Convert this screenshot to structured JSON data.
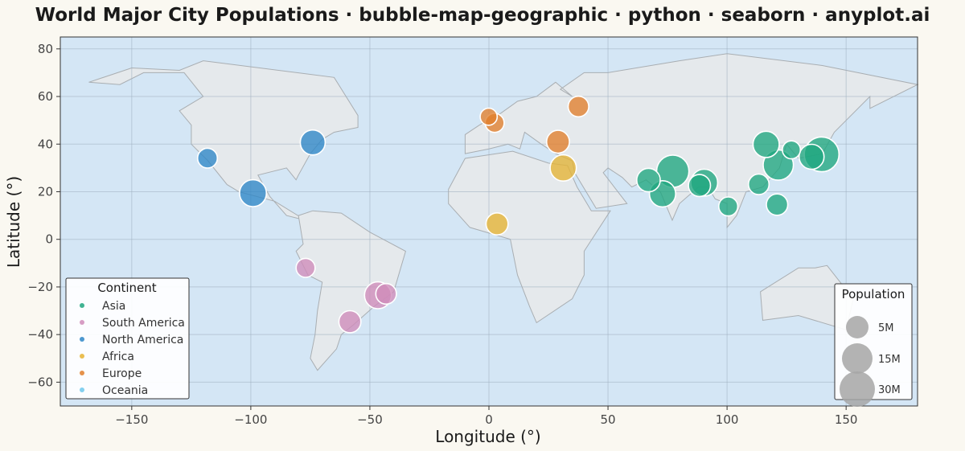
{
  "chart_data": {
    "type": "scatter",
    "title": "World Major City Populations · bubble-map-geographic · python · seaborn · anyplot.ai",
    "xlabel": "Longitude (°)",
    "ylabel": "Latitude (°)",
    "xlim": [
      -180,
      180
    ],
    "ylim": [
      -70,
      85
    ],
    "xticks": [
      -150,
      -100,
      -50,
      0,
      50,
      100,
      150
    ],
    "yticks": [
      -60,
      -40,
      -20,
      0,
      20,
      40,
      60,
      80
    ],
    "grid": true,
    "colors": {
      "ocean": "#D4E6F5",
      "land": "#E5E9EC",
      "land_edge": "#A9AEB2",
      "grid": "#9FAFC0",
      "Asia": "#1FA67F",
      "South America": "#D08CBA",
      "North America": "#2E86C7",
      "Africa": "#E6B333",
      "Europe": "#E17F2C",
      "Oceania": "#6EC8EC",
      "size_legend": "#A6A6A6"
    },
    "legend": {
      "title": "Continent",
      "placement": "lower-left",
      "entries": [
        "Asia",
        "South America",
        "North America",
        "Africa",
        "Europe",
        "Oceania"
      ]
    },
    "size_legend": {
      "title": "Population",
      "placement": "lower-right",
      "entries": [
        {
          "label": "5M",
          "value": 5
        },
        {
          "label": "15M",
          "value": 15
        },
        {
          "label": "30M",
          "value": 30
        }
      ]
    },
    "series": [
      {
        "name": "Asia",
        "points": [
          {
            "lon": 139.7,
            "lat": 35.7,
            "pop": 37
          },
          {
            "lon": 77.2,
            "lat": 28.6,
            "pop": 32
          },
          {
            "lon": 121.5,
            "lat": 31.2,
            "pop": 28
          },
          {
            "lon": 90.4,
            "lat": 23.8,
            "pop": 22
          },
          {
            "lon": 72.9,
            "lat": 19.1,
            "pop": 21
          },
          {
            "lon": 116.4,
            "lat": 39.9,
            "pop": 21
          },
          {
            "lon": 135.5,
            "lat": 34.7,
            "pop": 19
          },
          {
            "lon": 67.0,
            "lat": 24.9,
            "pop": 17
          },
          {
            "lon": 88.4,
            "lat": 22.6,
            "pop": 15
          },
          {
            "lon": 121.0,
            "lat": 14.6,
            "pop": 14
          },
          {
            "lon": 113.3,
            "lat": 23.1,
            "pop": 13
          },
          {
            "lon": 100.5,
            "lat": 13.8,
            "pop": 11
          },
          {
            "lon": 127.0,
            "lat": 37.6,
            "pop": 10
          }
        ]
      },
      {
        "name": "South America",
        "points": [
          {
            "lon": -46.6,
            "lat": -23.5,
            "pop": 22
          },
          {
            "lon": -58.4,
            "lat": -34.6,
            "pop": 15
          },
          {
            "lon": -43.2,
            "lat": -22.9,
            "pop": 13
          },
          {
            "lon": -77.0,
            "lat": -12.0,
            "pop": 11
          }
        ]
      },
      {
        "name": "North America",
        "points": [
          {
            "lon": -99.1,
            "lat": 19.4,
            "pop": 22
          },
          {
            "lon": -74.0,
            "lat": 40.7,
            "pop": 19
          },
          {
            "lon": -118.2,
            "lat": 34.1,
            "pop": 12
          }
        ]
      },
      {
        "name": "Africa",
        "points": [
          {
            "lon": 31.2,
            "lat": 30.0,
            "pop": 21
          },
          {
            "lon": 3.4,
            "lat": 6.5,
            "pop": 15
          }
        ]
      },
      {
        "name": "Europe",
        "points": [
          {
            "lon": 29.0,
            "lat": 41.0,
            "pop": 16
          },
          {
            "lon": 37.6,
            "lat": 55.8,
            "pop": 13
          },
          {
            "lon": 2.4,
            "lat": 48.9,
            "pop": 11
          },
          {
            "lon": -0.1,
            "lat": 51.5,
            "pop": 9
          }
        ]
      },
      {
        "name": "Oceania",
        "points": []
      }
    ],
    "land_polygons": [
      {
        "name": "north-america-landmass",
        "coords": [
          [
            -168,
            66
          ],
          [
            -150,
            72
          ],
          [
            -130,
            71
          ],
          [
            -120,
            75
          ],
          [
            -65,
            68
          ],
          [
            -55,
            52
          ],
          [
            -55,
            47
          ],
          [
            -65,
            45
          ],
          [
            -70,
            42
          ],
          [
            -75,
            36
          ],
          [
            -80,
            27
          ],
          [
            -81,
            25
          ],
          [
            -85,
            30
          ],
          [
            -97,
            27
          ],
          [
            -92,
            18
          ],
          [
            -85,
            10
          ],
          [
            -77,
            8
          ],
          [
            -90,
            16
          ],
          [
            -105,
            20
          ],
          [
            -110,
            23
          ],
          [
            -118,
            33
          ],
          [
            -125,
            40
          ],
          [
            -125,
            48
          ],
          [
            -130,
            54
          ],
          [
            -120,
            60
          ],
          [
            -128,
            70
          ],
          [
            -145,
            70
          ],
          [
            -155,
            65
          ],
          [
            -168,
            66
          ]
        ]
      },
      {
        "name": "south-america-landmass",
        "coords": [
          [
            -80,
            10
          ],
          [
            -74,
            12
          ],
          [
            -62,
            11
          ],
          [
            -50,
            3
          ],
          [
            -35,
            -5
          ],
          [
            -40,
            -22
          ],
          [
            -48,
            -28
          ],
          [
            -57,
            -36
          ],
          [
            -62,
            -40
          ],
          [
            -64,
            -46
          ],
          [
            -72,
            -55
          ],
          [
            -75,
            -50
          ],
          [
            -73,
            -40
          ],
          [
            -72,
            -30
          ],
          [
            -70,
            -18
          ],
          [
            -76,
            -15
          ],
          [
            -81,
            -5
          ],
          [
            -78,
            -2
          ],
          [
            -80,
            10
          ]
        ]
      },
      {
        "name": "europe-asia-landmass",
        "coords": [
          [
            -10,
            36
          ],
          [
            -10,
            44
          ],
          [
            -4,
            48
          ],
          [
            5,
            53
          ],
          [
            12,
            58
          ],
          [
            20,
            60
          ],
          [
            28,
            66
          ],
          [
            35,
            60
          ],
          [
            30,
            63
          ],
          [
            40,
            70
          ],
          [
            50,
            70
          ],
          [
            80,
            75
          ],
          [
            100,
            78
          ],
          [
            140,
            73
          ],
          [
            180,
            65
          ],
          [
            160,
            55
          ],
          [
            160,
            60
          ],
          [
            145,
            45
          ],
          [
            140,
            36
          ],
          [
            130,
            34
          ],
          [
            125,
            40
          ],
          [
            122,
            30
          ],
          [
            115,
            22
          ],
          [
            108,
            20
          ],
          [
            104,
            10
          ],
          [
            100,
            5
          ],
          [
            100,
            15
          ],
          [
            95,
            17
          ],
          [
            92,
            22
          ],
          [
            88,
            22
          ],
          [
            80,
            15
          ],
          [
            77,
            8
          ],
          [
            72,
            20
          ],
          [
            66,
            25
          ],
          [
            60,
            22
          ],
          [
            56,
            26
          ],
          [
            50,
            30
          ],
          [
            48,
            28
          ],
          [
            58,
            15
          ],
          [
            45,
            13
          ],
          [
            36,
            28
          ],
          [
            35,
            33
          ],
          [
            28,
            36
          ],
          [
            22,
            40
          ],
          [
            15,
            45
          ],
          [
            13,
            38
          ],
          [
            8,
            40
          ],
          [
            0,
            38
          ],
          [
            -10,
            36
          ]
        ]
      },
      {
        "name": "africa-landmass",
        "coords": [
          [
            -17,
            21
          ],
          [
            -10,
            34
          ],
          [
            10,
            37
          ],
          [
            25,
            32
          ],
          [
            33,
            31
          ],
          [
            37,
            22
          ],
          [
            43,
            12
          ],
          [
            51,
            12
          ],
          [
            40,
            -5
          ],
          [
            40,
            -15
          ],
          [
            35,
            -25
          ],
          [
            20,
            -35
          ],
          [
            17,
            -28
          ],
          [
            12,
            -15
          ],
          [
            9,
            0
          ],
          [
            -8,
            5
          ],
          [
            -17,
            15
          ],
          [
            -17,
            21
          ]
        ]
      },
      {
        "name": "australia-landmass",
        "coords": [
          [
            114,
            -22
          ],
          [
            115,
            -34
          ],
          [
            130,
            -32
          ],
          [
            150,
            -38
          ],
          [
            153,
            -25
          ],
          [
            142,
            -11
          ],
          [
            137,
            -12
          ],
          [
            130,
            -12
          ],
          [
            114,
            -22
          ]
        ]
      }
    ]
  }
}
